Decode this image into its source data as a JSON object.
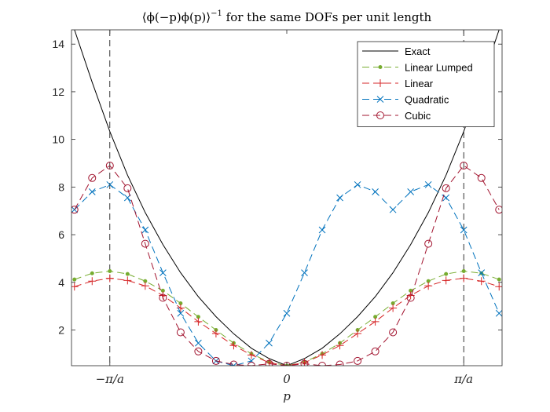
{
  "chart_data": {
    "type": "line",
    "title_expr": "⟨ϕ(−p)ϕ(p)⟩",
    "title_exp": "−1",
    "title_rest": " for the same DOFs per unit length",
    "xlabel": "p",
    "xlim": [
      -3.65,
      3.65
    ],
    "ylim": [
      0.5,
      14.6
    ],
    "x_ticks": [
      {
        "value": -3.0,
        "label": "−π/a"
      },
      {
        "value": 0.0,
        "label": "0"
      },
      {
        "value": 3.0,
        "label": "π/a"
      }
    ],
    "y_ticks": [
      2,
      4,
      6,
      8,
      10,
      12,
      14
    ],
    "vertical_lines": [
      -3.0,
      3.0
    ],
    "series": [
      {
        "name": "Exact",
        "color": "#000000",
        "dash": "none",
        "marker": "none",
        "x": [
          -3.6,
          -3.3,
          -3.0,
          -2.7,
          -2.4,
          -2.1,
          -1.8,
          -1.5,
          -1.2,
          -0.9,
          -0.6,
          -0.3,
          0.0,
          0.3,
          0.6,
          0.9,
          1.2,
          1.5,
          1.8,
          2.1,
          2.4,
          2.7,
          3.0,
          3.3,
          3.6
        ],
        "y": [
          14.6,
          12.4,
          10.33,
          8.5,
          6.93,
          5.58,
          4.4,
          3.4,
          2.56,
          1.84,
          1.23,
          0.8,
          0.5,
          0.8,
          1.23,
          1.84,
          2.56,
          3.4,
          4.4,
          5.58,
          6.93,
          8.5,
          10.33,
          12.4,
          14.6
        ]
      },
      {
        "name": "Linear Lumped",
        "color": "#77AC30",
        "dash": "9,5",
        "marker": "dot",
        "x": [
          -3.6,
          -3.3,
          -3.0,
          -2.7,
          -2.4,
          -2.1,
          -1.8,
          -1.5,
          -1.2,
          -0.9,
          -0.6,
          -0.3,
          0.0,
          0.3,
          0.6,
          0.9,
          1.2,
          1.5,
          1.8,
          2.1,
          2.4,
          2.7,
          3.0,
          3.3,
          3.6
        ],
        "y": [
          4.12,
          4.38,
          4.47,
          4.35,
          4.05,
          3.65,
          3.12,
          2.55,
          2.0,
          1.45,
          1.0,
          0.65,
          0.5,
          0.65,
          1.0,
          1.45,
          2.0,
          2.55,
          3.12,
          3.65,
          4.05,
          4.35,
          4.47,
          4.38,
          4.12
        ]
      },
      {
        "name": "Linear",
        "color": "#D62728",
        "dash": "9,5",
        "marker": "plus",
        "x": [
          -3.6,
          -3.3,
          -3.0,
          -2.7,
          -2.4,
          -2.1,
          -1.8,
          -1.5,
          -1.2,
          -0.9,
          -0.6,
          -0.3,
          0.0,
          0.3,
          0.6,
          0.9,
          1.2,
          1.5,
          1.8,
          2.1,
          2.4,
          2.7,
          3.0,
          3.3,
          3.6
        ],
        "y": [
          3.82,
          4.05,
          4.17,
          4.08,
          3.85,
          3.45,
          2.92,
          2.35,
          1.85,
          1.35,
          0.95,
          0.63,
          0.5,
          0.63,
          0.95,
          1.35,
          1.85,
          2.35,
          2.92,
          3.45,
          3.85,
          4.08,
          4.17,
          4.05,
          3.82
        ]
      },
      {
        "name": "Quadratic",
        "color": "#0072BD",
        "dash": "9,5",
        "marker": "cross",
        "x": [
          -3.6,
          -3.3,
          -3.0,
          -2.7,
          -2.4,
          -2.1,
          -1.8,
          -1.5,
          -1.2,
          -0.9,
          -0.6,
          -0.3,
          0.0,
          0.3,
          0.6,
          0.9,
          1.2,
          1.5,
          1.8,
          2.1,
          2.4,
          2.7,
          3.0,
          3.3,
          3.6
        ],
        "y": [
          7.05,
          7.8,
          8.1,
          7.55,
          6.2,
          4.4,
          2.7,
          1.45,
          0.7,
          0.5,
          0.7,
          1.45,
          2.7,
          4.4,
          6.2,
          7.55,
          8.1,
          7.8,
          7.05,
          7.8,
          8.1,
          7.55,
          6.2,
          4.4,
          2.7
        ]
      },
      {
        "name": "Cubic",
        "color": "#A2142F",
        "dash": "9,5",
        "marker": "circle",
        "x": [
          -3.6,
          -3.3,
          -3.0,
          -2.7,
          -2.4,
          -2.1,
          -1.8,
          -1.5,
          -1.2,
          -0.9,
          -0.6,
          -0.3,
          0.0,
          0.3,
          0.6,
          0.9,
          1.2,
          1.5,
          1.8,
          2.1,
          2.4,
          2.7,
          3.0,
          3.3,
          3.6
        ],
        "y": [
          7.05,
          8.38,
          8.9,
          7.95,
          5.62,
          3.35,
          1.9,
          1.1,
          0.7,
          0.55,
          0.5,
          0.58,
          0.5,
          0.58,
          0.5,
          0.55,
          0.7,
          1.1,
          1.9,
          3.35,
          5.62,
          7.95,
          8.9,
          8.38,
          7.05
        ]
      }
    ]
  }
}
